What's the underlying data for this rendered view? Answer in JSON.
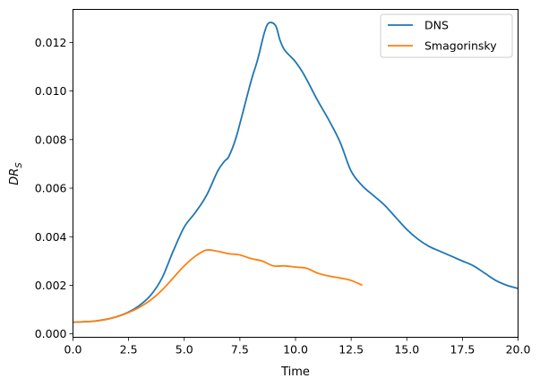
{
  "chart_data": {
    "type": "line",
    "title": "",
    "xlabel": "Time",
    "ylabel": "DR",
    "ylabel_subscript": "S",
    "xlim": [
      0,
      20
    ],
    "ylim": [
      -0.00014,
      0.01336
    ],
    "xticks": [
      0,
      2.5,
      5,
      7.5,
      10,
      12.5,
      15,
      17.5,
      20
    ],
    "xtick_labels": [
      "0.0",
      "2.5",
      "5.0",
      "7.5",
      "10.0",
      "12.5",
      "15.0",
      "17.5",
      "20.0"
    ],
    "yticks": [
      0,
      0.002,
      0.004,
      0.006,
      0.008,
      0.01,
      0.012
    ],
    "ytick_labels": [
      "0.000",
      "0.002",
      "0.004",
      "0.006",
      "0.008",
      "0.010",
      "0.012"
    ],
    "grid": false,
    "legend_position": "top-right",
    "series": [
      {
        "name": "DNS",
        "color": "#1f77b4",
        "x": [
          0,
          0.5,
          1,
          1.5,
          2,
          2.5,
          3,
          3.5,
          4,
          4.5,
          5,
          5.5,
          6,
          6.5,
          6.8,
          7,
          7.3,
          7.6,
          8,
          8.3,
          8.6,
          8.8,
          9.1,
          9.3,
          9.5,
          9.8,
          10,
          10.3,
          10.6,
          11,
          11.5,
          12,
          12.5,
          13,
          13.5,
          14,
          14.5,
          15,
          15.5,
          16,
          16.5,
          17,
          17.5,
          18,
          18.5,
          19,
          19.5,
          20
        ],
        "y": [
          0.00048,
          0.0005,
          0.00053,
          0.0006,
          0.00072,
          0.0009,
          0.00118,
          0.0016,
          0.0023,
          0.0034,
          0.0044,
          0.005,
          0.0057,
          0.0067,
          0.0071,
          0.0073,
          0.008,
          0.009,
          0.0104,
          0.0113,
          0.0124,
          0.0128,
          0.0127,
          0.0121,
          0.0117,
          0.0114,
          0.0112,
          0.0108,
          0.0103,
          0.0096,
          0.0088,
          0.0079,
          0.0067,
          0.0061,
          0.0057,
          0.0053,
          0.0048,
          0.0043,
          0.0039,
          0.0036,
          0.0034,
          0.0032,
          0.003,
          0.0028,
          0.0025,
          0.0022,
          0.002,
          0.00187
        ]
      },
      {
        "name": "Smagorinsky",
        "color": "#ff7f0e",
        "x": [
          0,
          0.5,
          1,
          1.5,
          2,
          2.5,
          3,
          3.5,
          4,
          4.5,
          5,
          5.5,
          6,
          6.5,
          7,
          7.5,
          8,
          8.5,
          9,
          9.5,
          10,
          10.5,
          11,
          11.5,
          12,
          12.5,
          13
        ],
        "y": [
          0.00048,
          0.0005,
          0.00053,
          0.0006,
          0.00071,
          0.00088,
          0.0011,
          0.0014,
          0.0018,
          0.0023,
          0.0028,
          0.0032,
          0.00345,
          0.0034,
          0.0033,
          0.00325,
          0.0031,
          0.003,
          0.0028,
          0.0028,
          0.00275,
          0.0027,
          0.0025,
          0.00238,
          0.0023,
          0.0022,
          0.002
        ]
      }
    ]
  }
}
